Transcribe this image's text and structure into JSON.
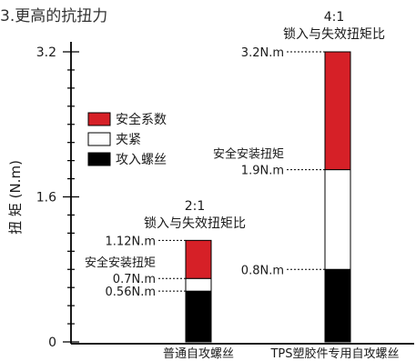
{
  "chart_data": {
    "type": "bar",
    "stacked": true,
    "title": "3.更高的抗扭力",
    "ylabel": "扭 矩 (N.m)",
    "xlabel": "",
    "ylim": [
      0,
      3.2
    ],
    "y_ticks": [
      "0",
      "1.6",
      "3.2"
    ],
    "legend_position": "top-left",
    "categories": [
      "普通自攻螺丝",
      "TPS塑胶件专用自攻螺丝"
    ],
    "series": [
      {
        "name": "攻入螺丝",
        "color": "#000000",
        "values": [
          0.56,
          0.8
        ]
      },
      {
        "name": "夹紧",
        "color": "#ffffff",
        "values": [
          0.14,
          1.1
        ]
      },
      {
        "name": "安全系数",
        "color": "#d62027",
        "values": [
          0.42,
          1.3
        ]
      }
    ],
    "bar_headers": [
      "2:1锁入与失效扭矩比",
      "4:1锁入与失效扭矩比"
    ],
    "annotations": [
      {
        "bar": 0,
        "value": 1.12,
        "lines": [
          "1.12N.m"
        ]
      },
      {
        "bar": 0,
        "value": 0.7,
        "lines": [
          "安全安装扭矩",
          "0.7N.m"
        ]
      },
      {
        "bar": 0,
        "value": 0.56,
        "lines": [
          "0.56N.m"
        ]
      },
      {
        "bar": 1,
        "value": 3.2,
        "lines": [
          "3.2N.m"
        ]
      },
      {
        "bar": 1,
        "value": 1.9,
        "lines": [
          "安全安装扭矩",
          "1.9N.m"
        ]
      },
      {
        "bar": 1,
        "value": 0.8,
        "lines": [
          "0.8N.m"
        ]
      }
    ]
  }
}
